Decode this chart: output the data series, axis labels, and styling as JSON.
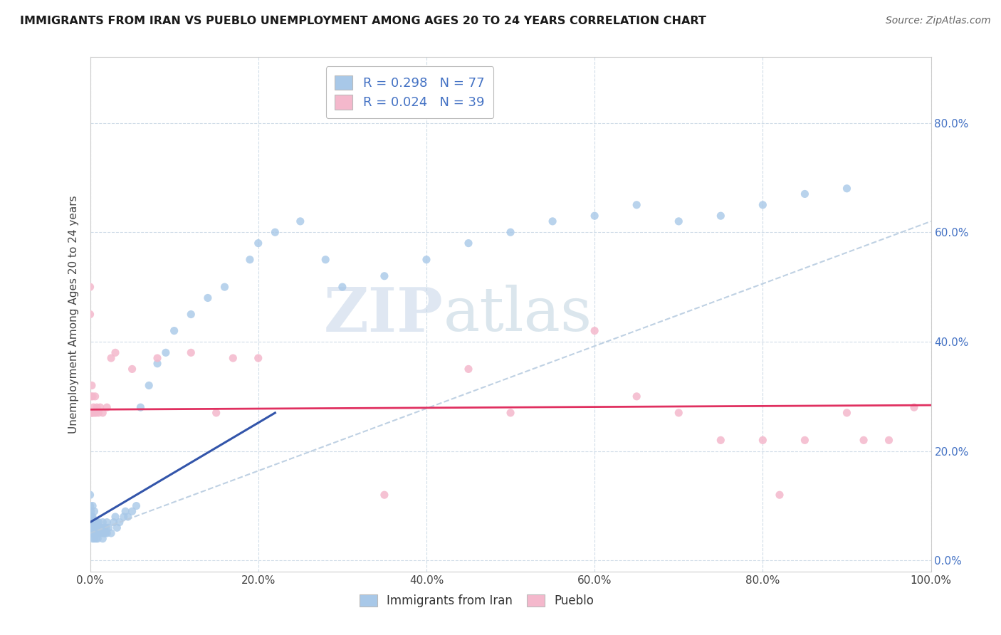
{
  "title": "IMMIGRANTS FROM IRAN VS PUEBLO UNEMPLOYMENT AMONG AGES 20 TO 24 YEARS CORRELATION CHART",
  "source": "Source: ZipAtlas.com",
  "ylabel": "Unemployment Among Ages 20 to 24 years",
  "xlabel": "",
  "xlim": [
    0,
    1.0
  ],
  "ylim": [
    -0.02,
    0.92
  ],
  "xticks": [
    0.0,
    0.2,
    0.4,
    0.6,
    0.8,
    1.0
  ],
  "yticks": [
    0.0,
    0.2,
    0.4,
    0.6,
    0.8
  ],
  "xticklabels": [
    "0.0%",
    "20.0%",
    "40.0%",
    "60.0%",
    "80.0%",
    "100.0%"
  ],
  "yticklabels": [
    "",
    "",
    "",
    "",
    ""
  ],
  "right_yticks": [
    0.0,
    0.2,
    0.4,
    0.6,
    0.8
  ],
  "right_yticklabels": [
    "0.0%",
    "20.0%",
    "40.0%",
    "60.0%",
    "80.0%"
  ],
  "legend_R1": "R = 0.298",
  "legend_N1": "N = 77",
  "legend_R2": "R = 0.024",
  "legend_N2": "N = 39",
  "color_iran": "#a8c8e8",
  "color_pueblo": "#f4b8cc",
  "color_iran_line": "#3355aa",
  "color_pueblo_line": "#e03060",
  "color_trendline": "#b8cce0",
  "legend_text_color": "#4472c4",
  "background_color": "#ffffff",
  "grid_color": "#d0dce8",
  "watermark_zip": "ZIP",
  "watermark_atlas": "atlas",
  "iran_x": [
    0.0,
    0.0,
    0.0,
    0.0,
    0.001,
    0.001,
    0.001,
    0.002,
    0.002,
    0.003,
    0.003,
    0.003,
    0.003,
    0.004,
    0.004,
    0.005,
    0.005,
    0.005,
    0.006,
    0.006,
    0.007,
    0.007,
    0.008,
    0.008,
    0.009,
    0.009,
    0.01,
    0.01,
    0.011,
    0.012,
    0.013,
    0.014,
    0.015,
    0.015,
    0.016,
    0.017,
    0.018,
    0.019,
    0.02,
    0.02,
    0.022,
    0.025,
    0.028,
    0.03,
    0.032,
    0.035,
    0.04,
    0.042,
    0.045,
    0.05,
    0.055,
    0.06,
    0.07,
    0.08,
    0.09,
    0.1,
    0.12,
    0.14,
    0.16,
    0.19,
    0.2,
    0.22,
    0.25,
    0.28,
    0.3,
    0.35,
    0.4,
    0.45,
    0.5,
    0.55,
    0.6,
    0.65,
    0.7,
    0.75,
    0.8,
    0.85,
    0.9
  ],
  "iran_y": [
    0.05,
    0.08,
    0.1,
    0.12,
    0.06,
    0.07,
    0.09,
    0.05,
    0.08,
    0.04,
    0.06,
    0.08,
    0.1,
    0.05,
    0.07,
    0.04,
    0.06,
    0.09,
    0.05,
    0.07,
    0.04,
    0.06,
    0.05,
    0.07,
    0.04,
    0.06,
    0.05,
    0.07,
    0.05,
    0.06,
    0.05,
    0.06,
    0.04,
    0.07,
    0.05,
    0.06,
    0.05,
    0.06,
    0.05,
    0.07,
    0.06,
    0.05,
    0.07,
    0.08,
    0.06,
    0.07,
    0.08,
    0.09,
    0.08,
    0.09,
    0.1,
    0.28,
    0.32,
    0.36,
    0.38,
    0.42,
    0.45,
    0.48,
    0.5,
    0.55,
    0.58,
    0.6,
    0.62,
    0.55,
    0.5,
    0.52,
    0.55,
    0.58,
    0.6,
    0.62,
    0.63,
    0.65,
    0.62,
    0.63,
    0.65,
    0.67,
    0.68
  ],
  "pueblo_x": [
    0.0,
    0.0,
    0.001,
    0.001,
    0.002,
    0.002,
    0.003,
    0.003,
    0.004,
    0.005,
    0.006,
    0.007,
    0.008,
    0.01,
    0.012,
    0.015,
    0.02,
    0.025,
    0.03,
    0.05,
    0.08,
    0.12,
    0.15,
    0.17,
    0.2,
    0.35,
    0.45,
    0.5,
    0.6,
    0.65,
    0.7,
    0.75,
    0.8,
    0.82,
    0.85,
    0.9,
    0.92,
    0.95,
    0.98
  ],
  "pueblo_y": [
    0.45,
    0.5,
    0.27,
    0.3,
    0.27,
    0.32,
    0.27,
    0.3,
    0.28,
    0.27,
    0.3,
    0.27,
    0.28,
    0.27,
    0.28,
    0.27,
    0.28,
    0.37,
    0.38,
    0.35,
    0.37,
    0.38,
    0.27,
    0.37,
    0.37,
    0.12,
    0.35,
    0.27,
    0.42,
    0.3,
    0.27,
    0.22,
    0.22,
    0.12,
    0.22,
    0.27,
    0.22,
    0.22,
    0.28
  ],
  "iran_line_x0": 0.0,
  "iran_line_y0": 0.07,
  "iran_line_x1": 0.22,
  "iran_line_y1": 0.27,
  "pueblo_line_y": 0.276,
  "pueblo_line_slope": 0.008,
  "dashed_line_x0": 0.0,
  "dashed_line_y0": 0.05,
  "dashed_line_x1": 1.0,
  "dashed_line_y1": 0.62
}
